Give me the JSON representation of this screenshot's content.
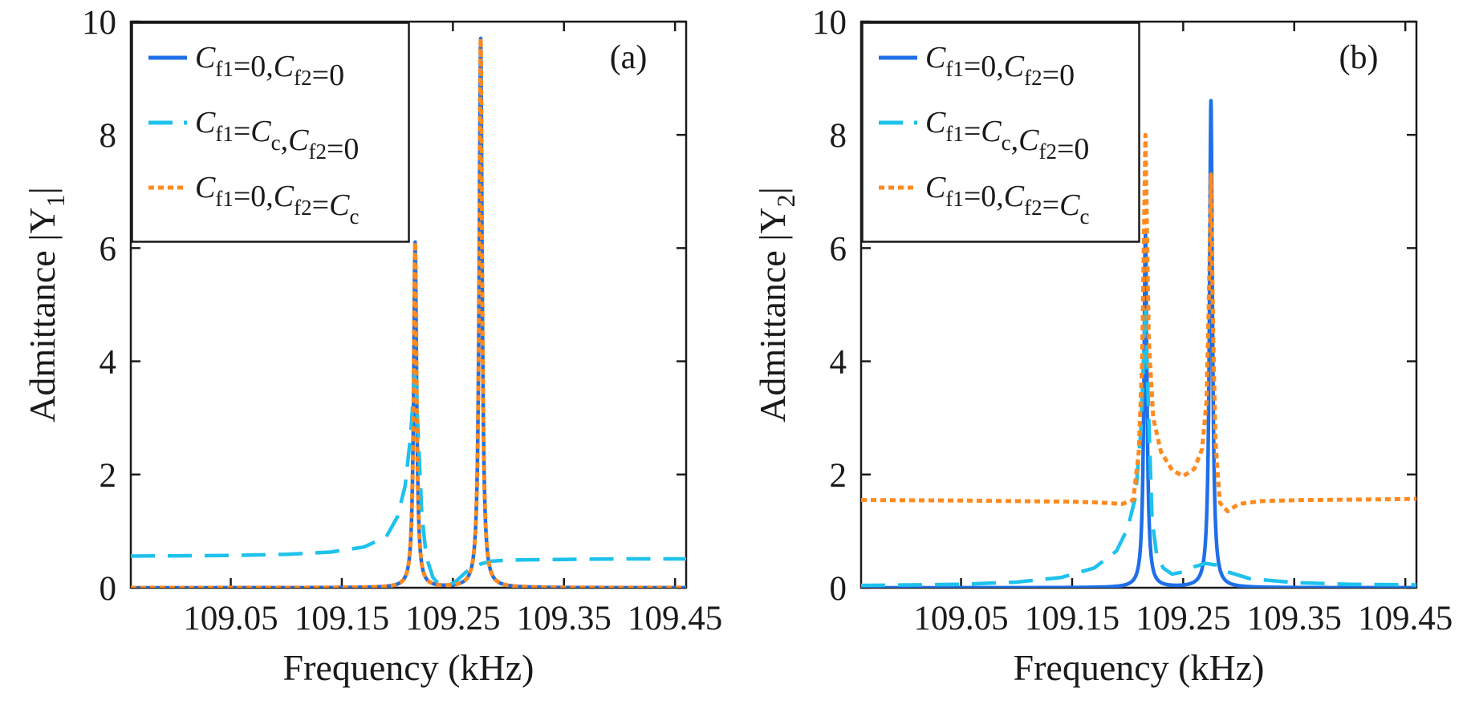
{
  "chart_data": [
    {
      "type": "line",
      "panel_label": "(a)",
      "xlabel": "Frequency (kHz)",
      "ylabel": "Admittance |Y₁|",
      "ylabel_text": "Admittance |Y",
      "ylabel_sub": "1",
      "ylabel_close": "|",
      "xlim": [
        108.96,
        109.46
      ],
      "ylim": [
        0,
        10
      ],
      "xticks": [
        109.05,
        109.15,
        109.25,
        109.35,
        109.45
      ],
      "xtick_labels": [
        "109.05",
        "109.15",
        "109.25",
        "109.35",
        "109.45"
      ],
      "yticks": [
        0,
        2,
        4,
        6,
        8,
        10
      ],
      "ytick_labels": [
        "0",
        "2",
        "4",
        "6",
        "8",
        "10"
      ],
      "legend_position": "top-left",
      "series": [
        {
          "name": "C_f1=0, C_f2=0",
          "legend_parts": [
            {
              "t": "C",
              "sub": "f1"
            },
            {
              "t": "=0,"
            },
            {
              "t": "C",
              "sub": "f2"
            },
            {
              "t": "=0"
            }
          ],
          "color": "#1f6fe8",
          "style": "solid",
          "model": {
            "c": [
              109.216,
              109.275
            ],
            "g": [
              0.0016,
              0.0016
            ],
            "a": [
              6.1,
              9.7
            ],
            "base": 0.0
          }
        },
        {
          "name": "C_f1=C_c, C_f2=0",
          "legend_parts": [
            {
              "t": "C",
              "sub": "f1"
            },
            {
              "t": "="
            },
            {
              "t": "C",
              "sub": "c"
            },
            {
              "t": ","
            },
            {
              "t": "C",
              "sub": "f2"
            },
            {
              "t": "=0"
            }
          ],
          "color": "#1ec2ec",
          "style": "dashed",
          "points": [
            [
              108.96,
              0.56
            ],
            [
              109.05,
              0.57
            ],
            [
              109.1,
              0.59
            ],
            [
              109.14,
              0.63
            ],
            [
              109.17,
              0.72
            ],
            [
              109.19,
              0.9
            ],
            [
              109.2,
              1.25
            ],
            [
              109.207,
              1.8
            ],
            [
              109.212,
              2.7
            ],
            [
              109.216,
              3.9
            ],
            [
              109.219,
              2.6
            ],
            [
              109.222,
              1.3
            ],
            [
              109.226,
              0.55
            ],
            [
              109.232,
              0.18
            ],
            [
              109.238,
              0.05
            ],
            [
              109.244,
              0.02
            ],
            [
              109.252,
              0.1
            ],
            [
              109.262,
              0.28
            ],
            [
              109.275,
              0.42
            ],
            [
              109.285,
              0.47
            ],
            [
              109.3,
              0.49
            ],
            [
              109.35,
              0.5
            ],
            [
              109.4,
              0.51
            ],
            [
              109.46,
              0.51
            ]
          ]
        },
        {
          "name": "C_f1=0, C_f2=C_c",
          "legend_parts": [
            {
              "t": "C",
              "sub": "f1"
            },
            {
              "t": "=0,"
            },
            {
              "t": "C",
              "sub": "f2"
            },
            {
              "t": "="
            },
            {
              "t": "C",
              "sub": "c"
            }
          ],
          "color": "#ff8a1f",
          "style": "dotted",
          "model": {
            "c": [
              109.216,
              109.275
            ],
            "g": [
              0.0016,
              0.0016
            ],
            "a": [
              6.1,
              9.7
            ],
            "base": 0.0
          }
        }
      ]
    },
    {
      "type": "line",
      "panel_label": "(b)",
      "xlabel": "Frequency (kHz)",
      "ylabel": "Admittance |Y₂|",
      "ylabel_text": "Admittance |Y",
      "ylabel_sub": "2",
      "ylabel_close": "|",
      "xlim": [
        108.96,
        109.46
      ],
      "ylim": [
        0,
        10
      ],
      "xticks": [
        109.05,
        109.15,
        109.25,
        109.35,
        109.45
      ],
      "xtick_labels": [
        "109.05",
        "109.15",
        "109.25",
        "109.35",
        "109.45"
      ],
      "yticks": [
        0,
        2,
        4,
        6,
        8,
        10
      ],
      "ytick_labels": [
        "0",
        "2",
        "4",
        "6",
        "8",
        "10"
      ],
      "legend_position": "top-left",
      "series": [
        {
          "name": "C_f1=0, C_f2=0",
          "legend_parts": [
            {
              "t": "C",
              "sub": "f1"
            },
            {
              "t": "=0,"
            },
            {
              "t": "C",
              "sub": "f2"
            },
            {
              "t": "=0"
            }
          ],
          "color": "#1f6fe8",
          "style": "solid",
          "model": {
            "c": [
              109.216,
              109.275
            ],
            "g": [
              0.0016,
              0.0016
            ],
            "a": [
              6.3,
              8.6
            ],
            "base": 0.0
          }
        },
        {
          "name": "C_f1=C_c, C_f2=0",
          "legend_parts": [
            {
              "t": "C",
              "sub": "f1"
            },
            {
              "t": "="
            },
            {
              "t": "C",
              "sub": "c"
            },
            {
              "t": ","
            },
            {
              "t": "C",
              "sub": "f2"
            },
            {
              "t": "=0"
            }
          ],
          "color": "#1ec2ec",
          "style": "dashed",
          "points": [
            [
              108.96,
              0.04
            ],
            [
              109.05,
              0.06
            ],
            [
              109.1,
              0.1
            ],
            [
              109.14,
              0.18
            ],
            [
              109.17,
              0.35
            ],
            [
              109.19,
              0.65
            ],
            [
              109.2,
              1.05
            ],
            [
              109.207,
              1.6
            ],
            [
              109.212,
              2.8
            ],
            [
              109.216,
              5.0
            ],
            [
              109.219,
              3.0
            ],
            [
              109.222,
              1.2
            ],
            [
              109.226,
              0.6
            ],
            [
              109.232,
              0.35
            ],
            [
              109.24,
              0.24
            ],
            [
              109.25,
              0.28
            ],
            [
              109.26,
              0.37
            ],
            [
              109.27,
              0.43
            ],
            [
              109.28,
              0.4
            ],
            [
              109.29,
              0.28
            ],
            [
              109.31,
              0.16
            ],
            [
              109.35,
              0.09
            ],
            [
              109.4,
              0.06
            ],
            [
              109.46,
              0.05
            ]
          ]
        },
        {
          "name": "C_f1=0, C_f2=C_c",
          "legend_parts": [
            {
              "t": "C",
              "sub": "f1"
            },
            {
              "t": "=0,"
            },
            {
              "t": "C",
              "sub": "f2"
            },
            {
              "t": "="
            },
            {
              "t": "C",
              "sub": "c"
            }
          ],
          "color": "#ff8a1f",
          "style": "dotted",
          "points": [
            [
              108.96,
              1.55
            ],
            [
              109.05,
              1.54
            ],
            [
              109.1,
              1.53
            ],
            [
              109.15,
              1.52
            ],
            [
              109.18,
              1.5
            ],
            [
              109.195,
              1.48
            ],
            [
              109.205,
              1.55
            ],
            [
              109.21,
              2.4
            ],
            [
              109.213,
              4.0
            ],
            [
              109.216,
              8.0
            ],
            [
              109.219,
              4.4
            ],
            [
              109.223,
              3.0
            ],
            [
              109.23,
              2.4
            ],
            [
              109.24,
              2.08
            ],
            [
              109.25,
              1.97
            ],
            [
              109.26,
              2.1
            ],
            [
              109.267,
              2.45
            ],
            [
              109.271,
              3.3
            ],
            [
              109.273,
              5.0
            ],
            [
              109.275,
              7.3
            ],
            [
              109.277,
              4.5
            ],
            [
              109.279,
              2.6
            ],
            [
              109.283,
              1.5
            ],
            [
              109.29,
              1.35
            ],
            [
              109.3,
              1.48
            ],
            [
              109.32,
              1.53
            ],
            [
              109.36,
              1.55
            ],
            [
              109.42,
              1.56
            ],
            [
              109.46,
              1.57
            ]
          ]
        }
      ]
    }
  ]
}
